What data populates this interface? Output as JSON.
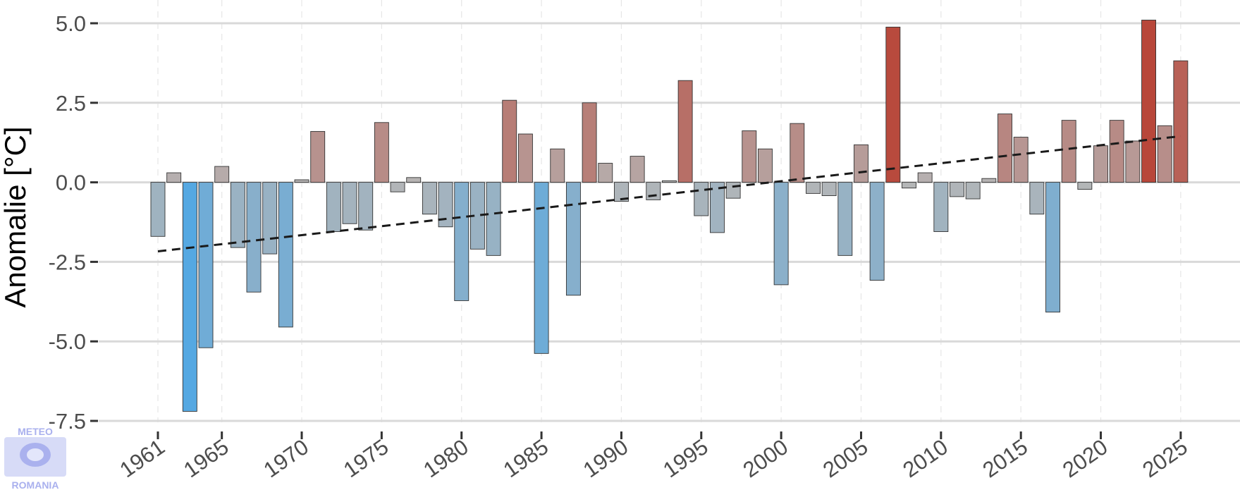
{
  "chart_data": {
    "type": "bar",
    "title": "",
    "xlabel": "",
    "ylabel": "Anomalie [°C]",
    "ylim": [
      -7.5,
      5.0
    ],
    "yticks": [
      5.0,
      2.5,
      0.0,
      -2.5,
      -5.0,
      -7.5
    ],
    "ytick_labels": [
      "5.0",
      "2.5",
      "0.0",
      "-2.5",
      "-5.0",
      "-7.5"
    ],
    "xticks": [
      1961,
      1965,
      1970,
      1975,
      1980,
      1985,
      1990,
      1995,
      2000,
      2005,
      2010,
      2015,
      2020,
      2025
    ],
    "xtick_labels": [
      "1961",
      "1965",
      "1970",
      "1975",
      "1980",
      "1985",
      "1990",
      "1995",
      "2000",
      "2005",
      "2010",
      "2015",
      "2020",
      "2025"
    ],
    "grid": "horizontal major",
    "colors": {
      "cold": "#55a8e2",
      "neutral": "#b6b6b6",
      "warm": "#b8473a",
      "trend": "#1a1a1a",
      "gridline": "#d9d9d9"
    },
    "years": [
      1961,
      1962,
      1963,
      1964,
      1965,
      1966,
      1967,
      1968,
      1969,
      1970,
      1971,
      1972,
      1973,
      1974,
      1975,
      1976,
      1977,
      1978,
      1979,
      1980,
      1981,
      1982,
      1983,
      1984,
      1985,
      1986,
      1987,
      1988,
      1989,
      1990,
      1991,
      1992,
      1993,
      1994,
      1995,
      1996,
      1997,
      1998,
      1999,
      2000,
      2001,
      2002,
      2003,
      2004,
      2005,
      2006,
      2007,
      2008,
      2009,
      2010,
      2011,
      2012,
      2013,
      2014,
      2015,
      2016,
      2017,
      2018,
      2019,
      2020,
      2021,
      2022,
      2023,
      2024,
      2025
    ],
    "values": [
      -1.7,
      0.3,
      -7.2,
      -5.2,
      0.5,
      -2.05,
      -3.45,
      -2.25,
      -4.55,
      0.08,
      1.6,
      -1.55,
      -1.3,
      -1.5,
      1.88,
      -0.3,
      0.15,
      -1.0,
      -1.4,
      -3.72,
      -2.1,
      -2.3,
      2.58,
      1.52,
      -5.38,
      1.05,
      -3.55,
      2.5,
      0.6,
      -0.6,
      0.82,
      -0.55,
      0.05,
      3.2,
      -1.05,
      -1.58,
      -0.5,
      1.62,
      1.05,
      -3.22,
      1.85,
      -0.35,
      -0.42,
      -2.3,
      1.18,
      -3.08,
      4.88,
      -0.18,
      0.3,
      -1.55,
      -0.45,
      -0.52,
      0.12,
      2.15,
      1.42,
      -1.0,
      -4.08,
      1.95,
      -0.22,
      1.15,
      1.95,
      1.3,
      5.1,
      1.78,
      3.82
    ],
    "trend": {
      "style": "dashed",
      "start": [
        1961,
        -2.17
      ],
      "end": [
        2025,
        1.45
      ]
    }
  },
  "logo": {
    "top_text": "METEO",
    "bottom_text": "ROMANIA"
  }
}
